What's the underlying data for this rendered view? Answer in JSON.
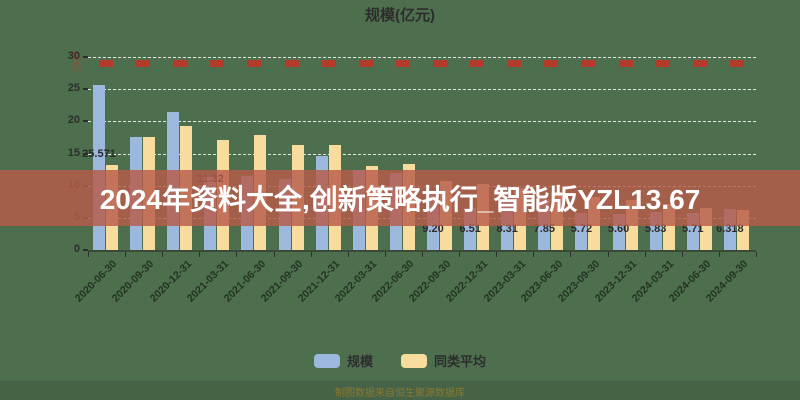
{
  "title": "规模(亿元)",
  "y_axis_unit": "亿元",
  "watermark_text": "2024年资料大全,创新策略执行_智能版YZL13.67",
  "footnote": "制图数据来自恒生聚源数据库",
  "colors": {
    "background": "#4d6f4e",
    "bar_scale": "#9cb8dc",
    "bar_average": "#f8dc9e",
    "red_marker": "#b23b2b",
    "banner": "rgba(183,91,73,0.82)",
    "banner_text": "#ffffff",
    "axis_text": "#2e2e2e",
    "unit_text": "#c03a2b",
    "footnote_text": "#8a7a2e"
  },
  "legend": [
    {
      "label": "规模",
      "color": "#9cb8dc"
    },
    {
      "label": "同类平均",
      "color": "#f8dc9e"
    }
  ],
  "chart_data": {
    "type": "bar",
    "title": "规模(亿元)",
    "xlabel": "",
    "ylabel": "亿元",
    "ylim": [
      0,
      30
    ],
    "yticks": [
      0,
      5,
      10,
      15,
      20,
      25,
      30
    ],
    "grid": "dashed-white",
    "legend_position": "bottom",
    "categories": [
      "2020-06-30",
      "2020-09-30",
      "2020-12-31",
      "2021-03-31",
      "2021-06-30",
      "2021-09-30",
      "2021-12-31",
      "2022-03-31",
      "2022-06-30",
      "2022-09-30",
      "2022-12-31",
      "2023-03-31",
      "2023-06-30",
      "2023-09-30",
      "2023-12-31",
      "2024-03-31",
      "2024-06-30",
      "2024-09-30"
    ],
    "series": [
      {
        "name": "规模",
        "color": "#9cb8dc",
        "values": [
          25.571,
          17.5,
          21.4,
          11.32,
          11.5,
          11.0,
          14.6,
          12.4,
          12.0,
          9.2,
          6.51,
          8.31,
          7.85,
          5.72,
          5.6,
          5.83,
          5.71,
          6.318
        ]
      },
      {
        "name": "同类平均",
        "color": "#f8dc9e",
        "values": [
          13.2,
          17.6,
          19.3,
          17.1,
          17.9,
          16.3,
          16.3,
          13.0,
          13.4,
          10.8,
          10.2,
          9.6,
          9.0,
          8.3,
          7.7,
          7.1,
          6.6,
          6.2
        ]
      }
    ],
    "value_labels": [
      {
        "text": "25.571",
        "group": 0,
        "at": 13.8
      },
      {
        "text": "11.32",
        "group": 3,
        "at": 10.0
      },
      {
        "text": "9.20",
        "group": 9,
        "at": 2.2
      },
      {
        "text": "6.51",
        "group": 10,
        "at": 2.2
      },
      {
        "text": "8.31",
        "group": 11,
        "at": 2.2
      },
      {
        "text": "7.85",
        "group": 12,
        "at": 2.2
      },
      {
        "text": "5.72",
        "group": 13,
        "at": 2.2
      },
      {
        "text": "5.60",
        "group": 14,
        "at": 2.2
      },
      {
        "text": "5.83",
        "group": 15,
        "at": 2.2
      },
      {
        "text": "5.71",
        "group": 16,
        "at": 2.2
      },
      {
        "text": "6.318",
        "group": 17,
        "at": 2.2
      }
    ],
    "top_markers": {
      "value": 29.6,
      "color": "#b23b2b"
    }
  }
}
